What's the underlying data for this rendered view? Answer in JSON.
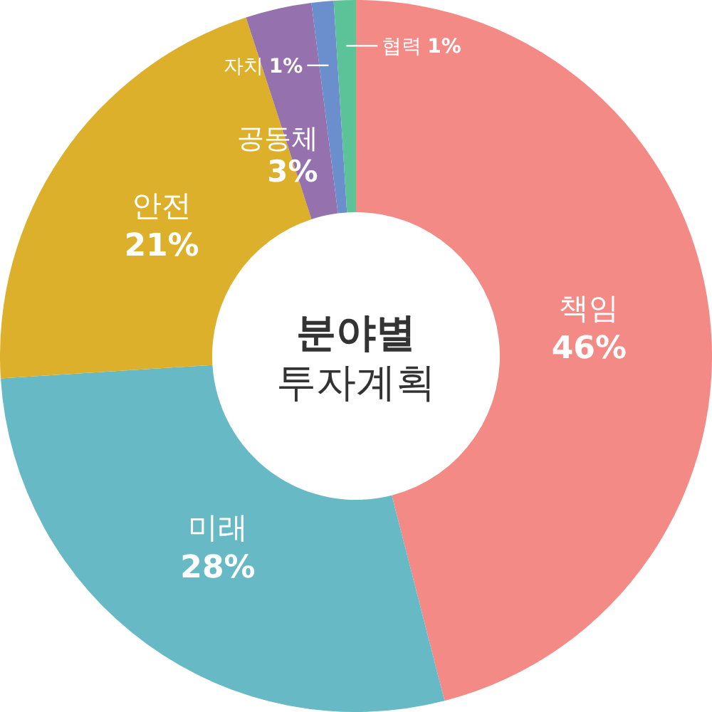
{
  "chart_data": {
    "type": "donut",
    "title": "분야별",
    "subtitle": "투자계획",
    "categories": [
      "책임",
      "미래",
      "안전",
      "공동체",
      "자치",
      "협력"
    ],
    "values": [
      46,
      28,
      21,
      3,
      1,
      1
    ],
    "colors": [
      "#f38a86",
      "#66b9c5",
      "#dcb02b",
      "#9571ad",
      "#6b8fcc",
      "#5bc397"
    ],
    "value_labels": [
      "46%",
      "28%",
      "21%",
      "3%",
      "1%",
      "1%"
    ]
  }
}
